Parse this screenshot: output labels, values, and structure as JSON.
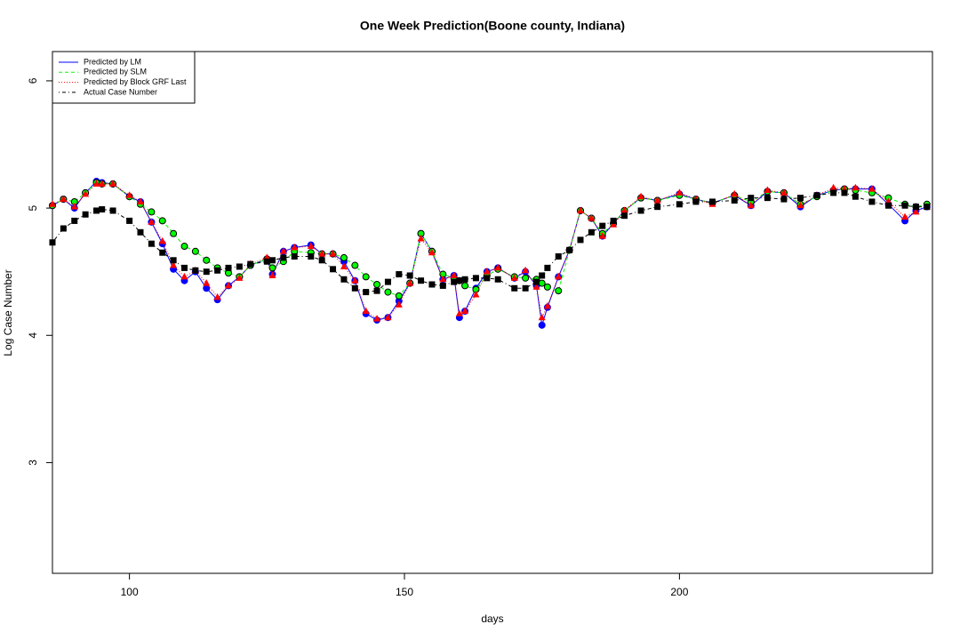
{
  "chart_data": {
    "type": "line",
    "title": "One Week Prediction(Boone county, Indiana)",
    "xlabel": "days",
    "ylabel": "Log Case Number",
    "x": [
      86,
      88,
      90,
      92,
      94,
      95,
      97,
      100,
      102,
      104,
      106,
      108,
      110,
      112,
      114,
      116,
      118,
      120,
      122,
      125,
      126,
      128,
      130,
      133,
      135,
      137,
      139,
      141,
      143,
      145,
      147,
      149,
      151,
      153,
      155,
      157,
      159,
      160,
      161,
      163,
      165,
      167,
      170,
      172,
      174,
      175,
      176,
      178,
      180,
      182,
      184,
      186,
      188,
      190,
      193,
      196,
      200,
      203,
      206,
      210,
      213,
      216,
      219,
      222,
      225,
      228,
      230,
      232,
      235,
      238,
      241,
      243,
      245
    ],
    "series": [
      {
        "name": "Predicted by LM",
        "color": "#0000ff",
        "line_style": "solid",
        "marker": "circle",
        "values": [
          5.02,
          5.07,
          5.0,
          5.12,
          5.21,
          5.2,
          5.19,
          5.09,
          5.05,
          4.89,
          4.72,
          4.52,
          4.43,
          4.5,
          4.37,
          4.28,
          4.39,
          4.46,
          4.55,
          4.6,
          4.48,
          4.66,
          4.69,
          4.71,
          4.64,
          4.64,
          4.58,
          4.43,
          4.17,
          4.12,
          4.14,
          4.27,
          4.41,
          4.8,
          4.66,
          4.44,
          4.47,
          4.14,
          4.19,
          4.37,
          4.5,
          4.53,
          4.45,
          4.5,
          4.39,
          4.08,
          4.22,
          4.46,
          4.67,
          4.98,
          4.92,
          4.78,
          4.88,
          4.98,
          5.08,
          5.06,
          5.11,
          5.07,
          5.04,
          5.1,
          5.02,
          5.13,
          5.12,
          5.01,
          5.1,
          5.14,
          5.15,
          5.15,
          5.15,
          5.03,
          4.9,
          4.98,
          5.01
        ]
      },
      {
        "name": "Predicted by SLM",
        "color": "#00ff00",
        "line_style": "dashed",
        "marker": "circle",
        "values": [
          5.02,
          5.07,
          5.05,
          5.12,
          5.2,
          5.19,
          5.19,
          5.09,
          5.03,
          4.97,
          4.9,
          4.8,
          4.7,
          4.66,
          4.59,
          4.53,
          4.49,
          4.46,
          4.55,
          4.6,
          4.53,
          4.58,
          4.66,
          4.65,
          4.64,
          4.64,
          4.61,
          4.55,
          4.46,
          4.4,
          4.34,
          4.31,
          4.41,
          4.8,
          4.66,
          4.48,
          4.45,
          4.43,
          4.39,
          4.36,
          4.47,
          4.52,
          4.46,
          4.45,
          4.44,
          4.41,
          4.38,
          4.35,
          4.67,
          4.98,
          4.92,
          4.8,
          4.88,
          4.98,
          5.08,
          5.06,
          5.1,
          5.07,
          5.04,
          5.1,
          5.05,
          5.13,
          5.12,
          5.03,
          5.09,
          5.14,
          5.15,
          5.14,
          5.12,
          5.08,
          5.03,
          5.01,
          5.03
        ]
      },
      {
        "name": "Predicted by Block GRF Last",
        "color": "#ff0000",
        "line_style": "dotted",
        "marker": "triangle",
        "values": [
          5.03,
          5.07,
          5.01,
          5.11,
          5.19,
          5.19,
          5.19,
          5.1,
          5.05,
          4.89,
          4.74,
          4.55,
          4.46,
          4.51,
          4.41,
          4.3,
          4.39,
          4.45,
          4.56,
          4.61,
          4.47,
          4.66,
          4.69,
          4.7,
          4.64,
          4.64,
          4.54,
          4.43,
          4.19,
          4.13,
          4.14,
          4.24,
          4.41,
          4.76,
          4.65,
          4.44,
          4.47,
          4.17,
          4.19,
          4.32,
          4.5,
          4.53,
          4.45,
          4.51,
          4.38,
          4.14,
          4.23,
          4.46,
          4.67,
          4.98,
          4.92,
          4.78,
          4.87,
          4.98,
          5.09,
          5.06,
          5.12,
          5.07,
          5.03,
          5.11,
          5.02,
          5.14,
          5.12,
          5.02,
          5.1,
          5.16,
          5.15,
          5.16,
          5.15,
          5.05,
          4.93,
          4.97,
          5.01
        ]
      },
      {
        "name": "Actual Case Number",
        "color": "#000000",
        "line_style": "dashdot",
        "marker": "square",
        "values": [
          4.73,
          4.84,
          4.9,
          4.95,
          4.98,
          4.99,
          4.98,
          4.9,
          4.81,
          4.72,
          4.65,
          4.59,
          4.53,
          4.51,
          4.5,
          4.51,
          4.53,
          4.54,
          4.56,
          4.58,
          4.59,
          4.61,
          4.62,
          4.62,
          4.59,
          4.52,
          4.44,
          4.37,
          4.34,
          4.35,
          4.42,
          4.48,
          4.47,
          4.43,
          4.4,
          4.39,
          4.42,
          4.43,
          4.44,
          4.45,
          4.45,
          4.44,
          4.37,
          4.37,
          4.42,
          4.47,
          4.53,
          4.62,
          4.67,
          4.75,
          4.81,
          4.86,
          4.9,
          4.94,
          4.98,
          5.01,
          5.03,
          5.05,
          5.05,
          5.06,
          5.08,
          5.08,
          5.07,
          5.08,
          5.1,
          5.12,
          5.12,
          5.09,
          5.05,
          5.02,
          5.02,
          5.01,
          5.01
        ]
      }
    ],
    "xlim": [
      86,
      246
    ],
    "xticks": [
      100,
      150,
      200
    ],
    "ylim": [
      2.13,
      6.23
    ],
    "yticks": [
      3,
      4,
      5,
      6
    ],
    "legend": "topleft"
  }
}
